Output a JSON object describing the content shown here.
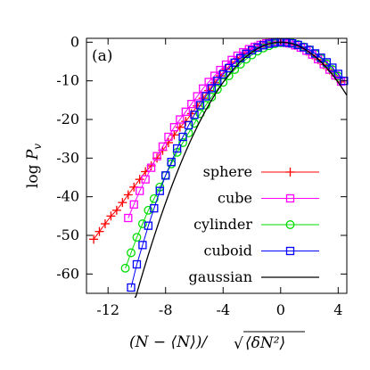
{
  "chart_data": {
    "type": "scatter",
    "panel_label": "(a)",
    "xlabel_parts": {
      "open": "(N − ⟨N⟩)/",
      "sqrt": "√",
      "radicand": "⟨δN²⟩"
    },
    "ylabel_parts": {
      "prefix": "log ",
      "var": "P",
      "sub": "v"
    },
    "xlim": [
      -13.5,
      4.6
    ],
    "ylim": [
      -65,
      1
    ],
    "xticks": [
      -12,
      -8,
      -4,
      0,
      4
    ],
    "yticks": [
      0,
      -10,
      -20,
      -30,
      -40,
      -50,
      -60
    ],
    "legend_position": "right-center",
    "series": [
      {
        "name": "sphere",
        "color": "#ff0000",
        "marker": "plus",
        "x": [
          -13.0,
          -12.6,
          -12.2,
          -11.8,
          -11.4,
          -11.0,
          -10.6,
          -10.2,
          -9.8,
          -9.4,
          -9.0,
          -8.6,
          -8.2,
          -7.8,
          -7.4,
          -7.0,
          -6.6,
          -6.2,
          -5.8,
          -5.4,
          -5.0,
          -4.6,
          -4.2,
          -3.8,
          -3.4,
          -3.0,
          -2.6,
          -2.2,
          -1.8,
          -1.4,
          -1.0,
          -0.6,
          -0.2,
          0.2,
          0.6,
          1.0,
          1.4,
          1.8,
          2.2,
          2.6,
          3.0,
          3.4,
          3.8,
          4.2
        ],
        "y": [
          -51,
          -49,
          -47,
          -45,
          -43.5,
          -41.5,
          -39.5,
          -37.5,
          -35.5,
          -33.5,
          -32,
          -30,
          -28,
          -26,
          -24,
          -22,
          -20.5,
          -18.5,
          -16.5,
          -14.5,
          -12.5,
          -10.5,
          -8.7,
          -7,
          -5.5,
          -4.2,
          -3,
          -2,
          -1.2,
          -0.6,
          -0.3,
          -0.1,
          0,
          -0.1,
          -0.3,
          -0.8,
          -1.4,
          -2.3,
          -3.3,
          -4.5,
          -5.8,
          -7.2,
          -8.7,
          -10.3
        ]
      },
      {
        "name": "cube",
        "color": "#ff00ff",
        "marker": "square",
        "x": [
          -10.6,
          -10.2,
          -9.8,
          -9.4,
          -9.0,
          -8.6,
          -8.2,
          -7.8,
          -7.4,
          -7.0,
          -6.6,
          -6.2,
          -5.8,
          -5.4,
          -5.0,
          -4.6,
          -4.2,
          -3.8,
          -3.4,
          -3.0,
          -2.6,
          -2.2,
          -1.8,
          -1.4,
          -1.0,
          -0.6,
          -0.2,
          0.2,
          0.6,
          1.0,
          1.4,
          1.8,
          2.2,
          2.6,
          3.0,
          3.4,
          3.8,
          4.2
        ],
        "y": [
          -45.5,
          -42,
          -38.5,
          -35.5,
          -32.5,
          -29.5,
          -27,
          -24.5,
          -22,
          -20,
          -18,
          -16,
          -14,
          -12,
          -10.3,
          -8.7,
          -7.2,
          -5.8,
          -4.6,
          -3.5,
          -2.6,
          -1.8,
          -1.2,
          -0.7,
          -0.3,
          -0.1,
          0,
          -0.1,
          -0.3,
          -0.8,
          -1.4,
          -2.2,
          -3.2,
          -4.4,
          -5.7,
          -7.1,
          -8.6,
          -10.2
        ]
      },
      {
        "name": "cylinder",
        "color": "#00dd00",
        "marker": "circle",
        "x": [
          -10.8,
          -10.4,
          -10.0,
          -9.6,
          -9.2,
          -8.8,
          -8.4,
          -8.0,
          -7.6,
          -7.2,
          -6.8,
          -6.4,
          -6.0,
          -5.6,
          -5.2,
          -4.8,
          -4.4,
          -4.0,
          -3.6,
          -3.2,
          -2.8,
          -2.4,
          -2.0,
          -1.6,
          -1.2,
          -0.8,
          -0.4,
          0.0,
          0.4,
          0.8,
          1.2,
          1.6,
          2.0,
          2.4,
          2.8,
          3.2,
          3.6,
          4.0
        ],
        "y": [
          -58.5,
          -54.5,
          -50.5,
          -47,
          -43.5,
          -40.5,
          -37.5,
          -34.5,
          -31.5,
          -28.5,
          -26,
          -23.5,
          -21,
          -18.5,
          -16.3,
          -14.2,
          -12.2,
          -10.4,
          -8.7,
          -7.1,
          -5.7,
          -4.4,
          -3.3,
          -2.3,
          -1.5,
          -0.9,
          -0.4,
          -0.1,
          0,
          -0.2,
          -0.6,
          -1.2,
          -2,
          -3,
          -4.2,
          -5.6,
          -7.1,
          -8.8
        ]
      },
      {
        "name": "cuboid",
        "color": "#0000ff",
        "marker": "square",
        "x": [
          -10.4,
          -10.0,
          -9.6,
          -9.2,
          -8.8,
          -8.4,
          -8.0,
          -7.6,
          -7.2,
          -6.8,
          -6.4,
          -6.0,
          -5.6,
          -5.2,
          -4.8,
          -4.4,
          -4.0,
          -3.6,
          -3.2,
          -2.8,
          -2.4,
          -2.0,
          -1.6,
          -1.2,
          -0.8,
          -0.4,
          0.0,
          0.4,
          0.8,
          1.2,
          1.6,
          2.0,
          2.4,
          2.8,
          3.2,
          3.6,
          4.0,
          4.4
        ],
        "y": [
          -63.5,
          -57.5,
          -52.5,
          -47.5,
          -43,
          -38.5,
          -34.5,
          -31,
          -27.5,
          -24.5,
          -21.5,
          -18.8,
          -16.3,
          -14,
          -11.9,
          -10,
          -8.3,
          -6.7,
          -5.3,
          -4.1,
          -3,
          -2.1,
          -1.4,
          -0.8,
          -0.4,
          -0.1,
          0,
          -0.1,
          -0.3,
          -0.7,
          -1.3,
          -2,
          -2.9,
          -4,
          -5.2,
          -6.6,
          -8.2,
          -10
        ]
      }
    ],
    "gaussian": {
      "name": "gaussian",
      "color": "#000000",
      "mean": 0,
      "variance": 1,
      "coef": 0.65,
      "x_start": -11.3,
      "x_end": 4.6
    },
    "legend_order": [
      "sphere",
      "cube",
      "cylinder",
      "cuboid",
      "gaussian"
    ]
  }
}
